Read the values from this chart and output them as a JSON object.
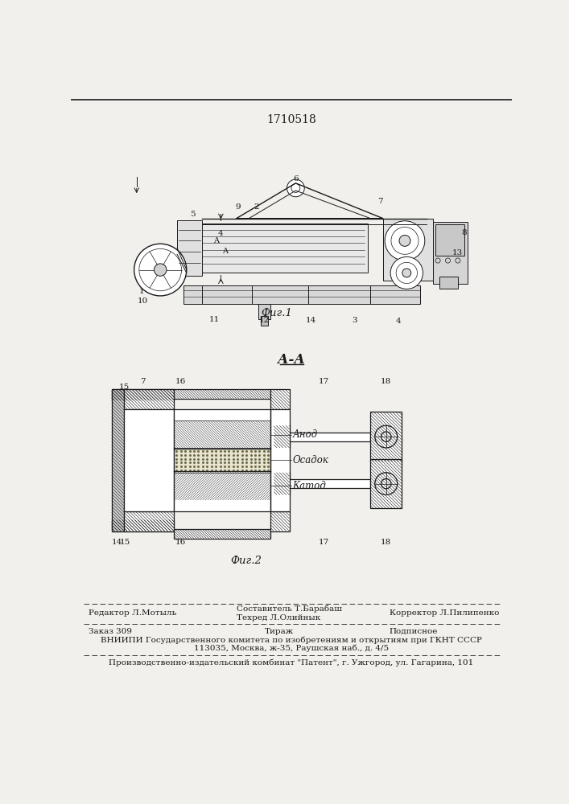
{
  "patent_number": "1710518",
  "fig1_caption": "Фиг.1",
  "fig2_caption": "Фиг.2",
  "fig2_title": "А-А",
  "fig2_labels": {
    "anode": "Анод",
    "sediment": "Осадок",
    "cathode": "Катод"
  },
  "footer_line1_left": "Редактор Л.Мотыль",
  "footer_line1_center1": "Составитель Т.Барабаш",
  "footer_line1_center2": "Техред Л.Олийнык",
  "footer_line1_right": "Корректор Л.Пилипенко",
  "footer_line2_left": "Заказ 309",
  "footer_line2_center": "Тираж",
  "footer_line2_right": "Подписное",
  "footer_line3": "ВНИИПИ Государственного комитета по изобретениям и открытиям при ГКНТ СССР",
  "footer_line4": "113035, Москва, ж-35, Раушская наб., д. 4/5",
  "footer_line5": "Производственно-издательский комбинат \"Патент\", г. Ужгород, ул. Гагарина, 101",
  "bg_color": "#f2f0ec",
  "line_color": "#1a1a1a",
  "text_color": "#1a1a1a",
  "hatch_color": "#333333"
}
